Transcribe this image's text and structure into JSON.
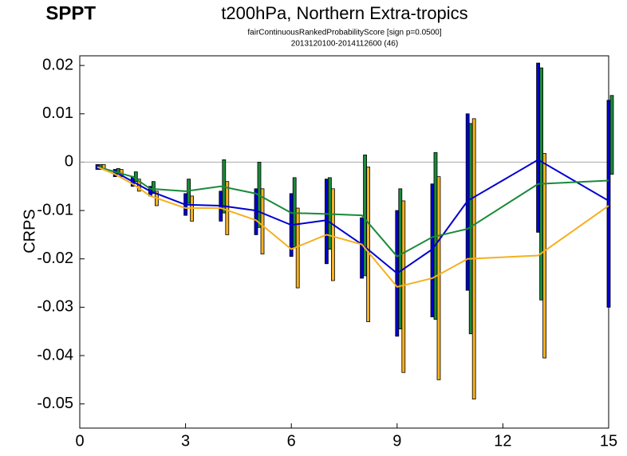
{
  "chart_data": {
    "type": "line",
    "corner_label": "SPPT",
    "title": "t200hPa,  Northern Extra-tropics",
    "subtitle": "fairContinuousRankedProbabilityScore [sign p=0.0500]",
    "subtitle2": "2013120100-2014112600 (46)",
    "y_label": "CRPS",
    "x": [
      0.5,
      1,
      1.5,
      2,
      3,
      4,
      5,
      6,
      7,
      8,
      9,
      10,
      11,
      13,
      15
    ],
    "xlim": [
      0,
      15
    ],
    "xticks": [
      0,
      3,
      6,
      9,
      12,
      15
    ],
    "ylim": [
      -0.055,
      0.022
    ],
    "yticks": [
      0.02,
      0.01,
      0,
      -0.01,
      -0.02,
      -0.03,
      -0.04,
      -0.05
    ],
    "zero_line": true,
    "series": [
      {
        "color": "#0000d0",
        "values": [
          -0.001,
          -0.002,
          -0.004,
          -0.006,
          -0.0088,
          -0.009,
          -0.01,
          -0.013,
          -0.012,
          -0.017,
          -0.023,
          -0.018,
          -0.008,
          0.0005,
          -0.008
        ],
        "low": [
          -0.0015,
          -0.003,
          -0.005,
          -0.007,
          -0.011,
          -0.0122,
          -0.015,
          -0.0195,
          -0.021,
          -0.024,
          -0.036,
          -0.032,
          -0.0265,
          -0.0145,
          -0.03
        ],
        "high": [
          -0.0005,
          -0.0015,
          -0.003,
          -0.005,
          -0.0065,
          -0.006,
          -0.0055,
          -0.0065,
          -0.0035,
          -0.0115,
          -0.01,
          -0.0045,
          0.01,
          0.0205,
          0.0128
        ]
      },
      {
        "color": "#1a8a3a",
        "values": [
          -0.001,
          -0.002,
          -0.003,
          -0.0055,
          -0.006,
          -0.005,
          -0.0065,
          -0.0105,
          -0.0107,
          -0.011,
          -0.0195,
          -0.0155,
          -0.0138,
          -0.0045,
          -0.0038
        ],
        "low": [
          -0.0015,
          -0.0025,
          -0.004,
          -0.0065,
          -0.0085,
          -0.0105,
          -0.0135,
          -0.0175,
          -0.018,
          -0.0235,
          -0.0345,
          -0.0325,
          -0.0355,
          -0.0285,
          -0.0025
        ],
        "high": [
          -0.0005,
          -0.0013,
          -0.002,
          -0.004,
          -0.0035,
          0.0005,
          0.0,
          -0.0032,
          -0.0032,
          0.0015,
          -0.0055,
          0.002,
          0.008,
          0.0195,
          0.0138
        ]
      },
      {
        "color": "#f5b021",
        "values": [
          -0.001,
          -0.0025,
          -0.0045,
          -0.007,
          -0.0095,
          -0.0095,
          -0.012,
          -0.018,
          -0.015,
          -0.017,
          -0.0258,
          -0.024,
          -0.02,
          -0.0193,
          -0.009
        ],
        "low": [
          -0.0015,
          -0.003,
          -0.006,
          -0.009,
          -0.0122,
          -0.015,
          -0.019,
          -0.026,
          -0.0245,
          -0.033,
          -0.0435,
          -0.045,
          -0.049,
          -0.0405,
          null
        ],
        "high": [
          -0.0005,
          -0.0015,
          -0.0035,
          -0.006,
          -0.007,
          -0.004,
          -0.0055,
          -0.0095,
          -0.0055,
          -0.001,
          -0.008,
          -0.003,
          0.009,
          0.0018,
          null
        ]
      }
    ]
  }
}
